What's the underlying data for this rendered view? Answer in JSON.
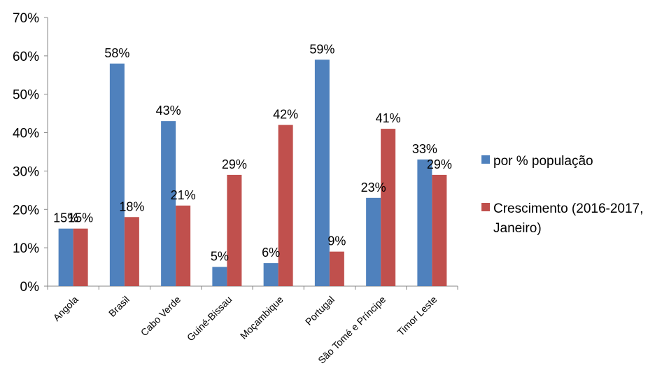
{
  "chart_data": {
    "type": "bar",
    "categories": [
      "Angola",
      "Brasil",
      "Cabo Verde",
      "Guiné-Bissau",
      "Moçambique",
      "Portugal",
      "São Tomé e Príncipe",
      "Timor Leste"
    ],
    "series": [
      {
        "name": "por % população",
        "color": "#4F81BD",
        "values": [
          15,
          58,
          43,
          5,
          6,
          59,
          23,
          33
        ],
        "labels": [
          "15%",
          "58%",
          "43%",
          "5%",
          "6%",
          "59%",
          "23%",
          "33%"
        ]
      },
      {
        "name": "Crescimento (2016-2017, Janeiro)",
        "name_lines": [
          "Crescimento (2016-2017,",
          "Janeiro)"
        ],
        "color": "#C0504D",
        "values": [
          15,
          18,
          21,
          29,
          42,
          9,
          41,
          29
        ],
        "labels": [
          "15%",
          "18%",
          "21%",
          "29%",
          "42%",
          "9%",
          "41%",
          "29%"
        ]
      }
    ],
    "y_ticks": [
      "0%",
      "10%",
      "20%",
      "30%",
      "40%",
      "50%",
      "60%",
      "70%"
    ],
    "ylim": [
      0,
      70
    ],
    "grid": false,
    "legend_position": "right"
  }
}
